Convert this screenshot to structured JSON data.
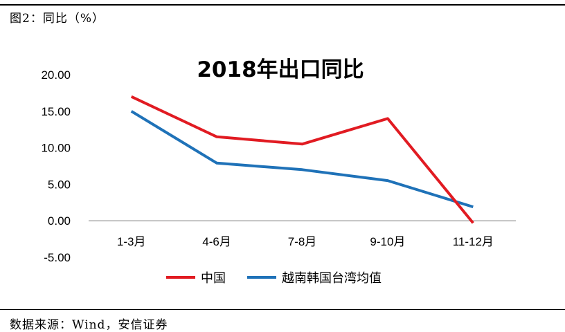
{
  "caption": "图2：同比（%）",
  "source": "数据来源：Wind，安信证券",
  "chart_data": {
    "type": "line",
    "title": "2018年出口同比",
    "categories": [
      "1-3月",
      "4-6月",
      "7-8月",
      "9-10月",
      "11-12月"
    ],
    "series": [
      {
        "name": "中国",
        "color": "#e11b22",
        "values": [
          17.0,
          11.5,
          10.5,
          14.0,
          -0.3
        ]
      },
      {
        "name": "越南韩国台湾均值",
        "color": "#1f72b8",
        "values": [
          15.0,
          7.9,
          7.0,
          5.5,
          1.9
        ]
      }
    ],
    "ylim": [
      -5,
      20
    ],
    "yticks": [
      "20.00",
      "15.00",
      "10.00",
      "5.00",
      "0.00",
      "-5.00"
    ],
    "ytick_values": [
      20,
      15,
      10,
      5,
      0,
      -5
    ],
    "legend_position": "bottom",
    "grid": false
  }
}
